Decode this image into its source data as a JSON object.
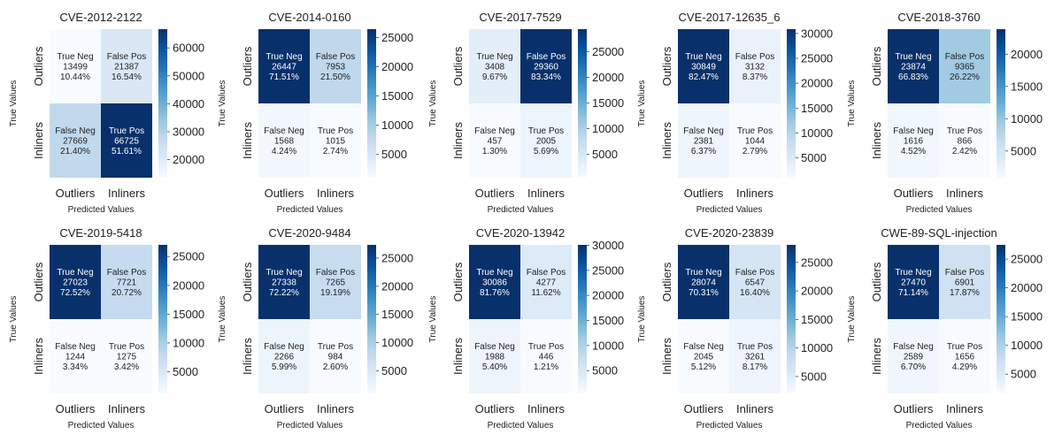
{
  "colormap": {
    "light": "#f7fbff",
    "dark": "#08306b"
  },
  "chart_data": [
    {
      "type": "heatmap",
      "title": "CVE-2012-2122",
      "xlabel": "Predicted Values",
      "ylabel": "True Values",
      "x_ticks": [
        "Outliers",
        "Inliners"
      ],
      "y_ticks": [
        "Outliers",
        "Inliners"
      ],
      "cells": [
        {
          "label": "True Neg",
          "count": "13499",
          "pct": "10.44%",
          "value": 13499
        },
        {
          "label": "False Pos",
          "count": "21387",
          "pct": "16.54%",
          "value": 21387
        },
        {
          "label": "False Neg",
          "count": "27669",
          "pct": "21.40%",
          "value": 27669
        },
        {
          "label": "True Pos",
          "count": "66725",
          "pct": "51.61%",
          "value": 66725
        }
      ],
      "colorbar_ticks": [
        "20000",
        "30000",
        "40000",
        "50000",
        "60000"
      ]
    },
    {
      "type": "heatmap",
      "title": "CVE-2014-0160",
      "xlabel": "Predicted Values",
      "ylabel": "True Values",
      "x_ticks": [
        "Outliers",
        "Inliners"
      ],
      "y_ticks": [
        "Outliers",
        "Inliners"
      ],
      "cells": [
        {
          "label": "True Neg",
          "count": "26447",
          "pct": "71.51%",
          "value": 26447
        },
        {
          "label": "False Pos",
          "count": "7953",
          "pct": "21.50%",
          "value": 7953
        },
        {
          "label": "False Neg",
          "count": "1568",
          "pct": "4.24%",
          "value": 1568
        },
        {
          "label": "True Pos",
          "count": "1015",
          "pct": "2.74%",
          "value": 1015
        }
      ],
      "colorbar_ticks": [
        "5000",
        "10000",
        "15000",
        "20000",
        "25000"
      ]
    },
    {
      "type": "heatmap",
      "title": "CVE-2017-7529",
      "xlabel": "Predicted Values",
      "ylabel": "True Values",
      "x_ticks": [
        "Outliers",
        "Inliners"
      ],
      "y_ticks": [
        "Outliers",
        "Inliners"
      ],
      "cells": [
        {
          "label": "True Neg",
          "count": "3408",
          "pct": "9.67%",
          "value": 3408
        },
        {
          "label": "False Pos",
          "count": "29360",
          "pct": "83.34%",
          "value": 29360
        },
        {
          "label": "False Neg",
          "count": "457",
          "pct": "1.30%",
          "value": 457
        },
        {
          "label": "True Pos",
          "count": "2005",
          "pct": "5.69%",
          "value": 2005
        }
      ],
      "colorbar_ticks": [
        "5000",
        "10000",
        "15000",
        "20000",
        "25000"
      ]
    },
    {
      "type": "heatmap",
      "title": "CVE-2017-12635_6",
      "xlabel": "Predicted Values",
      "ylabel": "True Values",
      "x_ticks": [
        "Outliers",
        "Inliners"
      ],
      "y_ticks": [
        "Outliers",
        "Inliners"
      ],
      "cells": [
        {
          "label": "True Neg",
          "count": "30849",
          "pct": "82.47%",
          "value": 30849
        },
        {
          "label": "False Pos",
          "count": "3132",
          "pct": "8.37%",
          "value": 3132
        },
        {
          "label": "False Neg",
          "count": "2381",
          "pct": "6.37%",
          "value": 2381
        },
        {
          "label": "True Pos",
          "count": "1044",
          "pct": "2.79%",
          "value": 1044
        }
      ],
      "colorbar_ticks": [
        "5000",
        "10000",
        "15000",
        "20000",
        "25000",
        "30000"
      ]
    },
    {
      "type": "heatmap",
      "title": "CVE-2018-3760",
      "xlabel": "Predicted Values",
      "ylabel": "True Values",
      "x_ticks": [
        "Outliers",
        "Inliners"
      ],
      "y_ticks": [
        "Outliers",
        "Inliners"
      ],
      "cells": [
        {
          "label": "True Neg",
          "count": "23874",
          "pct": "66.83%",
          "value": 23874
        },
        {
          "label": "False Pos",
          "count": "9365",
          "pct": "26.22%",
          "value": 9365
        },
        {
          "label": "False Neg",
          "count": "1616",
          "pct": "4.52%",
          "value": 1616
        },
        {
          "label": "True Pos",
          "count": "866",
          "pct": "2.42%",
          "value": 866
        }
      ],
      "colorbar_ticks": [
        "5000",
        "10000",
        "15000",
        "20000"
      ]
    },
    {
      "type": "heatmap",
      "title": "CVE-2019-5418",
      "xlabel": "Predicted Values",
      "ylabel": "True Values",
      "x_ticks": [
        "Outliers",
        "Inliners"
      ],
      "y_ticks": [
        "Outliers",
        "Inliners"
      ],
      "cells": [
        {
          "label": "True Neg",
          "count": "27023",
          "pct": "72.52%",
          "value": 27023
        },
        {
          "label": "False Pos",
          "count": "7721",
          "pct": "20.72%",
          "value": 7721
        },
        {
          "label": "False Neg",
          "count": "1244",
          "pct": "3.34%",
          "value": 1244
        },
        {
          "label": "True Pos",
          "count": "1275",
          "pct": "3.42%",
          "value": 1275
        }
      ],
      "colorbar_ticks": [
        "5000",
        "10000",
        "15000",
        "20000",
        "25000"
      ]
    },
    {
      "type": "heatmap",
      "title": "CVE-2020-9484",
      "xlabel": "Predicted Values",
      "ylabel": "True Values",
      "x_ticks": [
        "Outliers",
        "Inliners"
      ],
      "y_ticks": [
        "Outliers",
        "Inliners"
      ],
      "cells": [
        {
          "label": "True Neg",
          "count": "27338",
          "pct": "72.22%",
          "value": 27338
        },
        {
          "label": "False Pos",
          "count": "7265",
          "pct": "19.19%",
          "value": 7265
        },
        {
          "label": "False Neg",
          "count": "2266",
          "pct": "5.99%",
          "value": 2266
        },
        {
          "label": "True Pos",
          "count": "984",
          "pct": "2.60%",
          "value": 984
        }
      ],
      "colorbar_ticks": [
        "5000",
        "10000",
        "15000",
        "20000",
        "25000"
      ]
    },
    {
      "type": "heatmap",
      "title": "CVE-2020-13942",
      "xlabel": "Predicted Values",
      "ylabel": "True Values",
      "x_ticks": [
        "Outliers",
        "Inliners"
      ],
      "y_ticks": [
        "Outliers",
        "Inliners"
      ],
      "cells": [
        {
          "label": "True Neg",
          "count": "30086",
          "pct": "81.76%",
          "value": 30086
        },
        {
          "label": "False Pos",
          "count": "4277",
          "pct": "11.62%",
          "value": 4277
        },
        {
          "label": "False Neg",
          "count": "1988",
          "pct": "5.40%",
          "value": 1988
        },
        {
          "label": "True Pos",
          "count": "446",
          "pct": "1.21%",
          "value": 446
        }
      ],
      "colorbar_ticks": [
        "5000",
        "10000",
        "15000",
        "20000",
        "25000",
        "30000"
      ]
    },
    {
      "type": "heatmap",
      "title": "CVE-2020-23839",
      "xlabel": "Predicted Values",
      "ylabel": "True Values",
      "x_ticks": [
        "Outliers",
        "Inliners"
      ],
      "y_ticks": [
        "Outliers",
        "Inliners"
      ],
      "cells": [
        {
          "label": "True Neg",
          "count": "28074",
          "pct": "70.31%",
          "value": 28074
        },
        {
          "label": "False Pos",
          "count": "6547",
          "pct": "16.40%",
          "value": 6547
        },
        {
          "label": "False Neg",
          "count": "2045",
          "pct": "5.12%",
          "value": 2045
        },
        {
          "label": "True Pos",
          "count": "3261",
          "pct": "8.17%",
          "value": 3261
        }
      ],
      "colorbar_ticks": [
        "5000",
        "10000",
        "15000",
        "20000",
        "25000"
      ]
    },
    {
      "type": "heatmap",
      "title": "CWE-89-SQL-injection",
      "xlabel": "Predicted Values",
      "ylabel": "True Values",
      "x_ticks": [
        "Outliers",
        "Inliners"
      ],
      "y_ticks": [
        "Outliers",
        "Inliners"
      ],
      "cells": [
        {
          "label": "True Neg",
          "count": "27470",
          "pct": "71.14%",
          "value": 27470
        },
        {
          "label": "False Pos",
          "count": "6901",
          "pct": "17.87%",
          "value": 6901
        },
        {
          "label": "False Neg",
          "count": "2589",
          "pct": "6.70%",
          "value": 2589
        },
        {
          "label": "True Pos",
          "count": "1656",
          "pct": "4.29%",
          "value": 1656
        }
      ],
      "colorbar_ticks": [
        "5000",
        "10000",
        "15000",
        "20000",
        "25000"
      ]
    }
  ]
}
